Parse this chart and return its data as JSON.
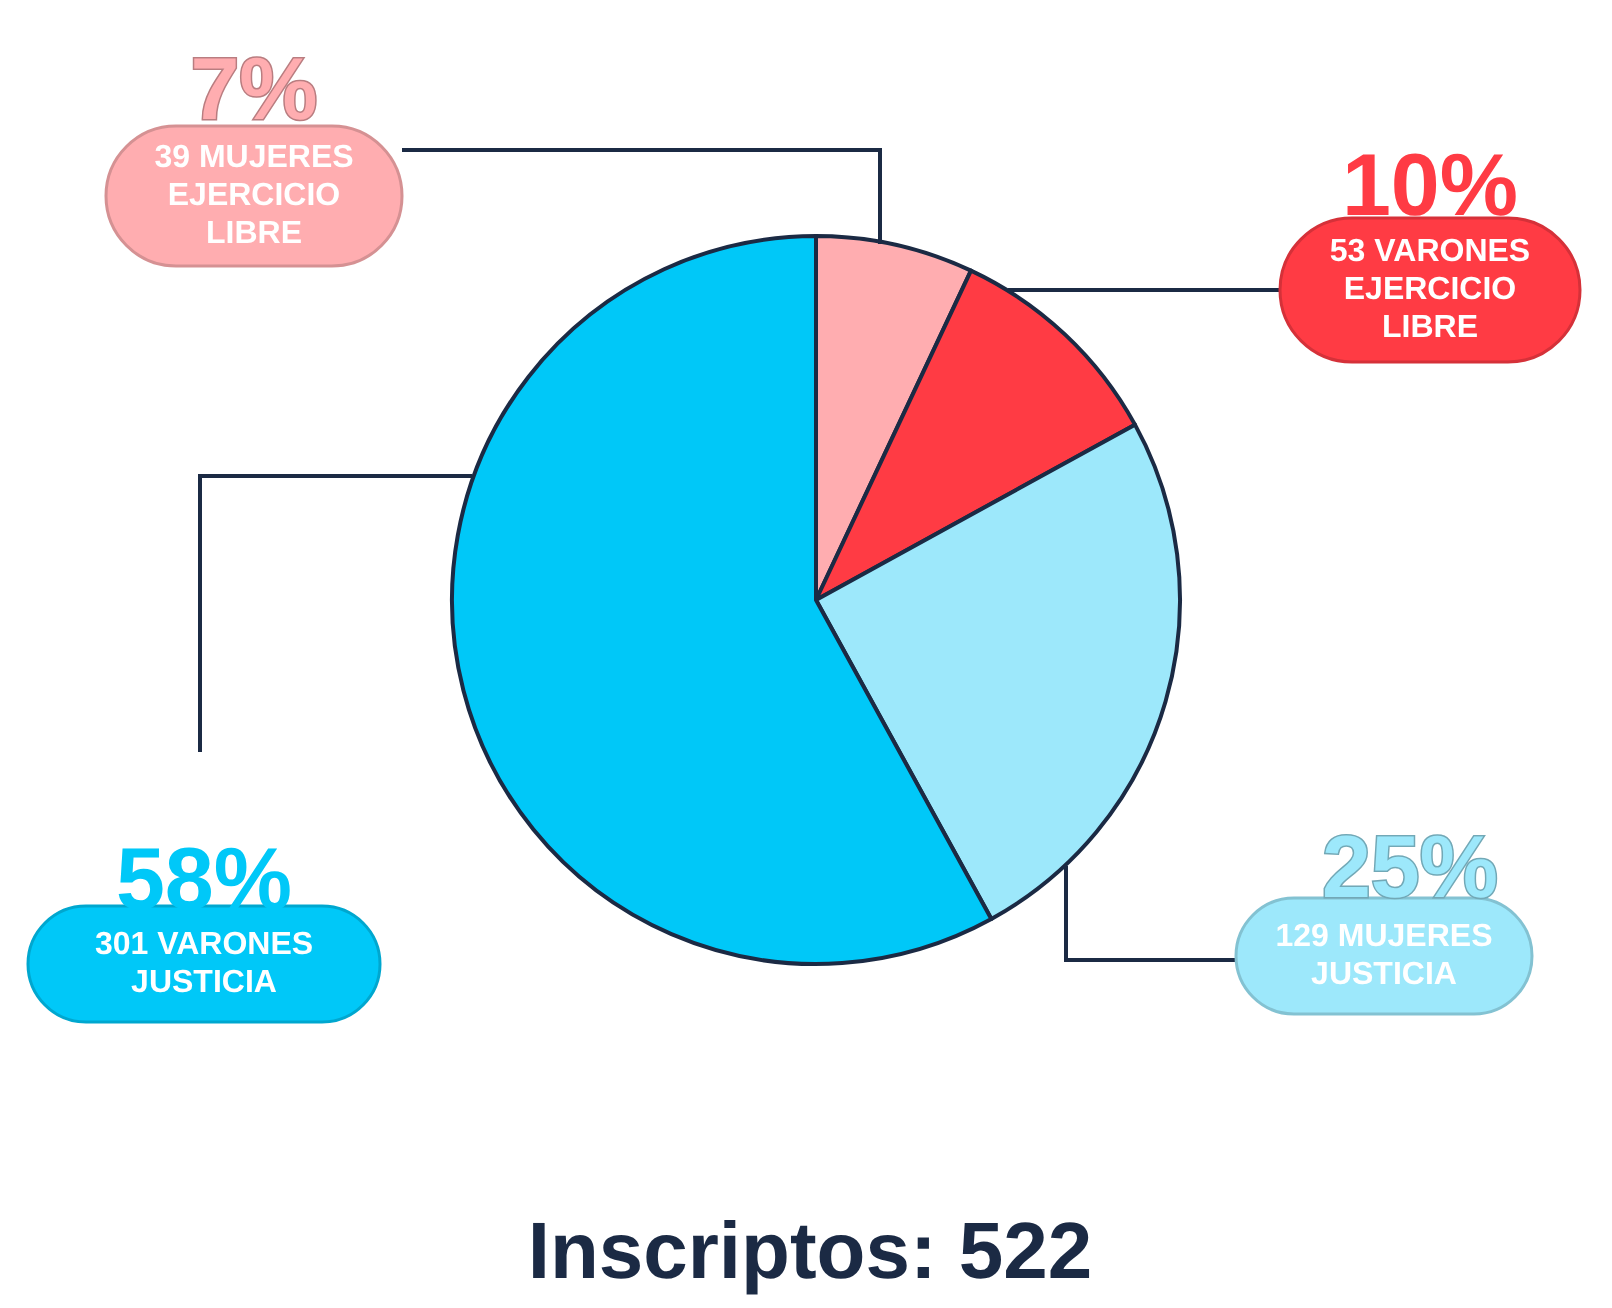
{
  "chart_data": {
    "type": "pie",
    "title": "Inscriptos: 522",
    "categories": [
      "39 MUJERES EJERCICIO LIBRE",
      "53 VARONES EJERCICIO LIBRE",
      "129 MUJERES JUSTICIA",
      "301 VARONES JUSTICIA"
    ],
    "values": [
      7,
      10,
      25,
      58
    ],
    "value_labels": [
      "7%",
      "10%",
      "25%",
      "58%"
    ],
    "colors": [
      "#ffadb0",
      "#ff3b44",
      "#9de8fb",
      "#00c8f8"
    ]
  }
}
